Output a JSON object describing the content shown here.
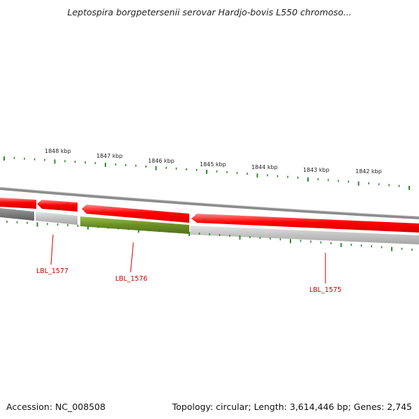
{
  "title": "Leptospira borgpetersenii serovar Hardjo-bovis L550 chromoso...",
  "footer": {
    "accession": "Accession: NC_008508",
    "summary": "Topology: circular; Length: 3,614,446 bp; Genes: 2,745"
  },
  "scale_labels": [
    "1848 kbp",
    "1847 kbp",
    "1846 kbp",
    "1845 kbp",
    "1844 kbp",
    "1843 kbp",
    "1842 kbp"
  ],
  "gene_labels": [
    "LBL_1577",
    "LBL_1576",
    "LBL_1575"
  ],
  "colors": {
    "tick": "#2e8b2e",
    "forward_gene": "#ff0000",
    "reverse_gene_highlight": "#6b8e23",
    "label": "#cc0000",
    "backbone": "#8c8c8c"
  }
}
